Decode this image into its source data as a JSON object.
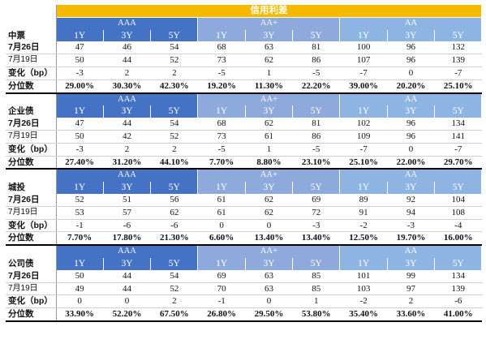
{
  "title": "信用利差",
  "ratings": [
    "AAA",
    "AA+",
    "AA"
  ],
  "tenors": [
    "1Y",
    "3Y",
    "5Y",
    "1Y",
    "3Y",
    "5Y",
    "1Y",
    "3Y",
    "5Y"
  ],
  "sections": [
    {
      "name": "中票",
      "rows": [
        {
          "label": "7月26日",
          "values": [
            "47",
            "46",
            "54",
            "68",
            "63",
            "81",
            "100",
            "96",
            "132"
          ]
        },
        {
          "label": "7月19日",
          "values": [
            "50",
            "44",
            "52",
            "73",
            "62",
            "86",
            "107",
            "96",
            "139"
          ]
        },
        {
          "label": "变化（bp）",
          "values": [
            "-3",
            "2",
            "2",
            "-5",
            "1",
            "-5",
            "-7",
            "0",
            "-7"
          ]
        },
        {
          "label": "分位数",
          "values": [
            "29.00%",
            "30.30%",
            "42.30%",
            "19.20%",
            "11.30%",
            "22.20%",
            "39.00%",
            "20.20%",
            "25.10%"
          ]
        }
      ]
    },
    {
      "name": "企业债",
      "rows": [
        {
          "label": "7月26日",
          "values": [
            "47",
            "44",
            "54",
            "68",
            "62",
            "81",
            "102",
            "96",
            "134"
          ]
        },
        {
          "label": "7月19日",
          "values": [
            "50",
            "42",
            "52",
            "73",
            "61",
            "86",
            "109",
            "96",
            "141"
          ]
        },
        {
          "label": "变化（bp）",
          "values": [
            "-3",
            "2",
            "2",
            "-5",
            "1",
            "-5",
            "-7",
            "0",
            "-7"
          ]
        },
        {
          "label": "分位数",
          "values": [
            "27.40%",
            "31.20%",
            "44.10%",
            "7.70%",
            "8.80%",
            "23.10%",
            "25.10%",
            "22.00%",
            "29.70%"
          ]
        }
      ]
    },
    {
      "name": "城投",
      "rows": [
        {
          "label": "7月26日",
          "values": [
            "52",
            "51",
            "56",
            "61",
            "62",
            "69",
            "89",
            "92",
            "104"
          ]
        },
        {
          "label": "7月19日",
          "values": [
            "53",
            "57",
            "62",
            "61",
            "62",
            "72",
            "91",
            "94",
            "108"
          ]
        },
        {
          "label": "变化（bp）",
          "values": [
            "-1",
            "-6",
            "-6",
            "0",
            "0",
            "-3",
            "-2",
            "-3",
            "-4"
          ]
        },
        {
          "label": "分位数",
          "values": [
            "7.70%",
            "17.80%",
            "21.30%",
            "6.60%",
            "13.40%",
            "13.40%",
            "12.50%",
            "19.70%",
            "16.00%"
          ]
        }
      ]
    },
    {
      "name": "公司债",
      "rows": [
        {
          "label": "7月26日",
          "values": [
            "50",
            "44",
            "54",
            "69",
            "63",
            "85",
            "101",
            "99",
            "134"
          ]
        },
        {
          "label": "7月19日",
          "values": [
            "49",
            "44",
            "52",
            "70",
            "63",
            "85",
            "103",
            "97",
            "139"
          ]
        },
        {
          "label": "变化（bp）",
          "values": [
            "0",
            "0",
            "2",
            "-1",
            "0",
            "1",
            "-2",
            "2",
            "-6"
          ]
        },
        {
          "label": "分位数",
          "values": [
            "33.90%",
            "52.20%",
            "67.50%",
            "26.80%",
            "29.50%",
            "53.80%",
            "35.40%",
            "33.60%",
            "41.00%"
          ]
        }
      ]
    }
  ]
}
